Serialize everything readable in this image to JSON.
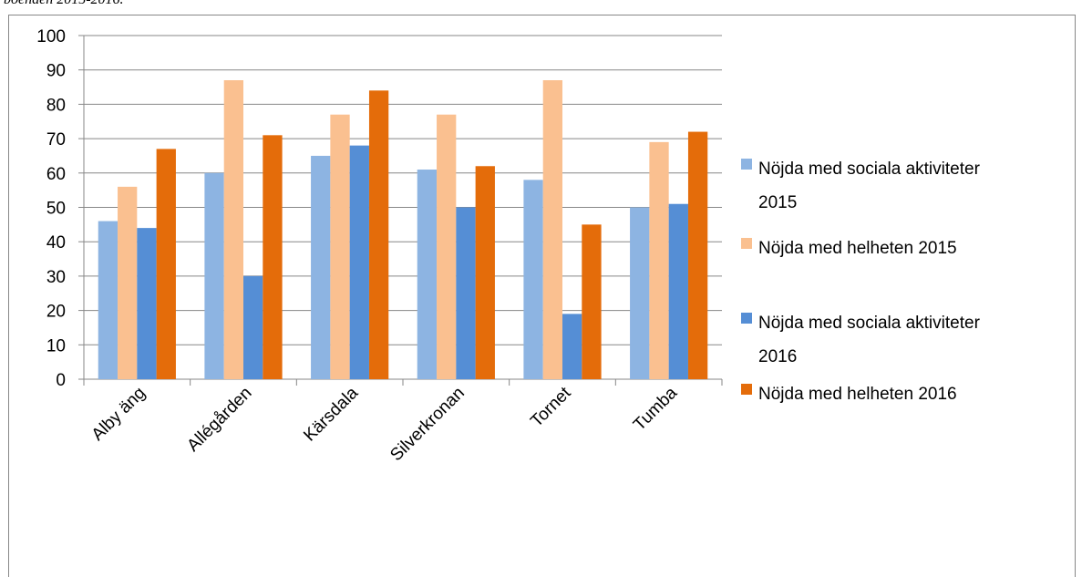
{
  "caption": "boenden 2015-2016.",
  "chart_data": {
    "type": "bar",
    "categories": [
      "Alby äng",
      "Allégården",
      "Kärsdala",
      "Silverkronan",
      "Tornet",
      "Tumba"
    ],
    "ylim": [
      0,
      100
    ],
    "yticks": [
      0,
      10,
      20,
      30,
      40,
      50,
      60,
      70,
      80,
      90,
      100
    ],
    "grid": true,
    "legend_position": "right",
    "series": [
      {
        "name": "Nöjda med sociala aktiviteter 2015",
        "legend_lines": [
          "Nöjda med sociala aktiviteter",
          "2015"
        ],
        "color": "#8db4e2",
        "values": [
          46,
          60,
          65,
          61,
          58,
          50
        ]
      },
      {
        "name": "Nöjda med helheten 2015",
        "legend_lines": [
          "Nöjda med helheten 2015"
        ],
        "color": "#fac090",
        "values": [
          56,
          87,
          77,
          77,
          87,
          69
        ]
      },
      {
        "name": "Nöjda med sociala aktiviteter 2016",
        "legend_lines": [
          "Nöjda med sociala aktiviteter",
          "2016"
        ],
        "color": "#558ed5",
        "values": [
          44,
          30,
          68,
          50,
          19,
          51
        ]
      },
      {
        "name": "Nöjda med helheten 2016",
        "legend_lines": [
          "Nöjda med helheten 2016"
        ],
        "color": "#e46c0a",
        "values": [
          67,
          71,
          84,
          62,
          45,
          72
        ]
      }
    ]
  }
}
